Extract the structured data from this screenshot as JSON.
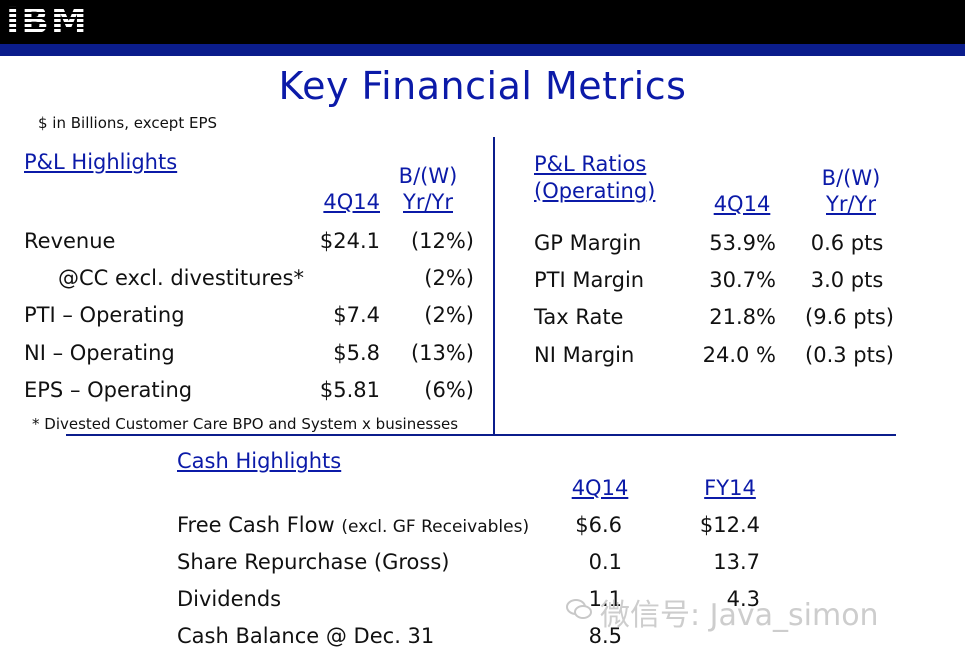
{
  "header": {
    "logo": "IBM"
  },
  "title": "Key Financial Metrics",
  "note": "$ in Billions, except EPS",
  "pl_highlights": {
    "heading": "P&L Highlights",
    "col_period": "4Q14",
    "col_bw_top": "B/(W)",
    "col_bw_bottom": "Yr/Yr",
    "rows": [
      {
        "label": "Revenue",
        "value": "$24.1",
        "change": "(12%)"
      },
      {
        "label": "@CC excl. divestitures*",
        "value": "",
        "change": "(2%)"
      },
      {
        "label": "PTI – Operating",
        "value": "$7.4",
        "change": "(2%)"
      },
      {
        "label": "NI – Operating",
        "value": "$5.8",
        "change": "(13%)"
      },
      {
        "label": "EPS – Operating",
        "value": "$5.81",
        "change": "(6%)"
      }
    ],
    "footnote": "* Divested Customer Care BPO and System x businesses"
  },
  "pl_ratios": {
    "heading_line1": "P&L Ratios",
    "heading_line2": "(Operating)",
    "col_period": "4Q14",
    "col_bw_top": "B/(W)",
    "col_bw_bottom": "Yr/Yr",
    "rows": [
      {
        "label": "GP Margin",
        "value": "53.9%",
        "change": "0.6 pts"
      },
      {
        "label": "PTI Margin",
        "value": "30.7%",
        "change": "3.0 pts"
      },
      {
        "label": "Tax Rate",
        "value": "21.8%",
        "change": "(9.6 pts)"
      },
      {
        "label": "NI Margin",
        "value": "24.0 %",
        "change": "(0.3 pts)"
      }
    ]
  },
  "cash_highlights": {
    "heading": "Cash Highlights",
    "col_q": "4Q14",
    "col_fy": "FY14",
    "rows": [
      {
        "label": "Free Cash Flow",
        "label_small": "(excl. GF Receivables)",
        "q": "$6.6",
        "fy": "$12.4"
      },
      {
        "label": "Share Repurchase (Gross)",
        "label_small": "",
        "q": "0.1",
        "fy": "13.7"
      },
      {
        "label": "Dividends",
        "label_small": "",
        "q": "1.1",
        "fy": "4.3"
      },
      {
        "label": "Cash Balance @ Dec. 31",
        "label_small": "",
        "q": "8.5",
        "fy": ""
      }
    ]
  },
  "watermark": "微信号: Java_simon",
  "colors": {
    "accent": "#0b1aa8",
    "header": "#000000",
    "strip": "#0b1d8c"
  }
}
